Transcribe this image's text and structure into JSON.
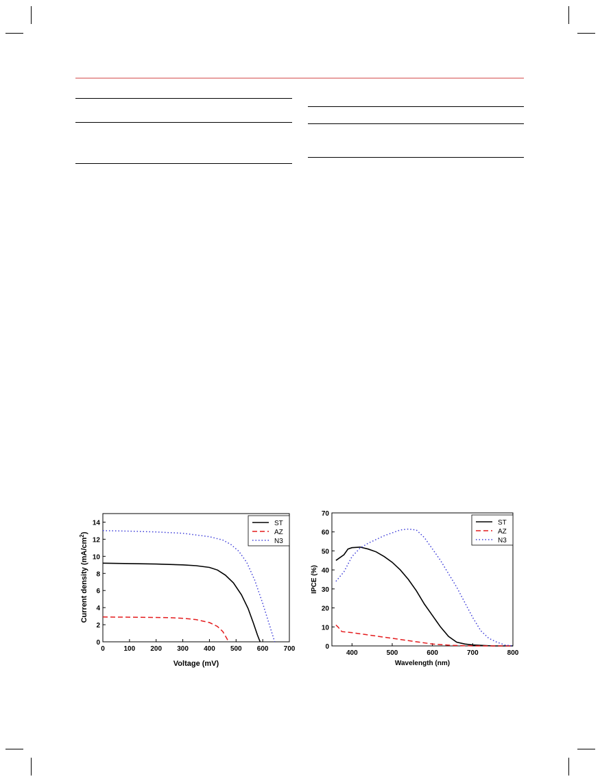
{
  "colors": {
    "header_rule": "#e8a0a0",
    "series_ST": "#000000",
    "series_AZ": "#e41a1c",
    "series_N3": "#3a3ad8"
  },
  "chart_data": [
    {
      "type": "line",
      "xlabel": "Voltage (mV)",
      "ylabel": "Current density (mA/cm²)",
      "ylabel_main": "Current density (mA/cm",
      "ylabel_sup": "2",
      "ylabel_tail": ")",
      "xlim": [
        0,
        700
      ],
      "ylim": [
        0,
        15
      ],
      "xticks": [
        0,
        100,
        200,
        300,
        400,
        500,
        600,
        700
      ],
      "yticks": [
        0,
        2,
        4,
        6,
        8,
        10,
        12,
        14
      ],
      "legend_position": "top-right",
      "series": [
        {
          "name": "ST",
          "style": "solid",
          "color": "#000000",
          "x": [
            0,
            100,
            200,
            300,
            350,
            400,
            430,
            460,
            490,
            520,
            545,
            565,
            580,
            590
          ],
          "y": [
            9.2,
            9.15,
            9.1,
            9.0,
            8.9,
            8.7,
            8.4,
            7.8,
            6.9,
            5.5,
            3.9,
            2.2,
            0.8,
            0
          ]
        },
        {
          "name": "AZ",
          "style": "dashed",
          "color": "#e41a1c",
          "x": [
            0,
            100,
            200,
            250,
            300,
            350,
            400,
            430,
            450,
            465,
            472
          ],
          "y": [
            2.9,
            2.88,
            2.85,
            2.82,
            2.75,
            2.6,
            2.25,
            1.8,
            1.2,
            0.4,
            0
          ]
        },
        {
          "name": "N3",
          "style": "dotted",
          "color": "#3a3ad8",
          "x": [
            0,
            100,
            200,
            300,
            400,
            450,
            480,
            510,
            540,
            570,
            600,
            620,
            635,
            645
          ],
          "y": [
            13.0,
            12.95,
            12.85,
            12.7,
            12.3,
            11.9,
            11.4,
            10.6,
            9.3,
            7.2,
            4.5,
            2.5,
            1.0,
            0
          ]
        }
      ]
    },
    {
      "type": "line",
      "xlabel": "Wavelength (nm)",
      "ylabel": "IPCE (%)",
      "xlim": [
        350,
        800
      ],
      "ylim": [
        0,
        70
      ],
      "xticks": [
        400,
        500,
        600,
        700,
        800
      ],
      "yticks": [
        0,
        10,
        20,
        30,
        40,
        50,
        60,
        70
      ],
      "legend_position": "top-right",
      "series": [
        {
          "name": "ST",
          "style": "solid",
          "color": "#000000",
          "x": [
            360,
            380,
            390,
            400,
            420,
            440,
            460,
            480,
            500,
            520,
            540,
            560,
            580,
            600,
            620,
            640,
            660,
            680,
            700,
            750,
            800
          ],
          "y": [
            45,
            48,
            51,
            51.7,
            52,
            51,
            49.5,
            47,
            44,
            40,
            35,
            29,
            22,
            16,
            10,
            5,
            2,
            1,
            0.5,
            0,
            0
          ]
        },
        {
          "name": "AZ",
          "style": "dashed",
          "color": "#e41a1c",
          "x": [
            360,
            365,
            375,
            400,
            450,
            500,
            550,
            600,
            650,
            700,
            750,
            800
          ],
          "y": [
            11,
            10,
            7.5,
            7,
            5.5,
            4,
            2.5,
            1,
            0.3,
            0,
            0,
            0
          ]
        },
        {
          "name": "N3",
          "style": "dotted",
          "color": "#3a3ad8",
          "x": [
            360,
            380,
            400,
            420,
            440,
            460,
            480,
            500,
            520,
            540,
            560,
            580,
            600,
            620,
            640,
            660,
            680,
            700,
            720,
            740,
            760,
            780,
            800
          ],
          "y": [
            34,
            39,
            47,
            51.5,
            54,
            56,
            58,
            59.5,
            61,
            61.5,
            61,
            57,
            51,
            45,
            38,
            31,
            23,
            15,
            8,
            4,
            2,
            0.5,
            0
          ]
        }
      ]
    }
  ]
}
